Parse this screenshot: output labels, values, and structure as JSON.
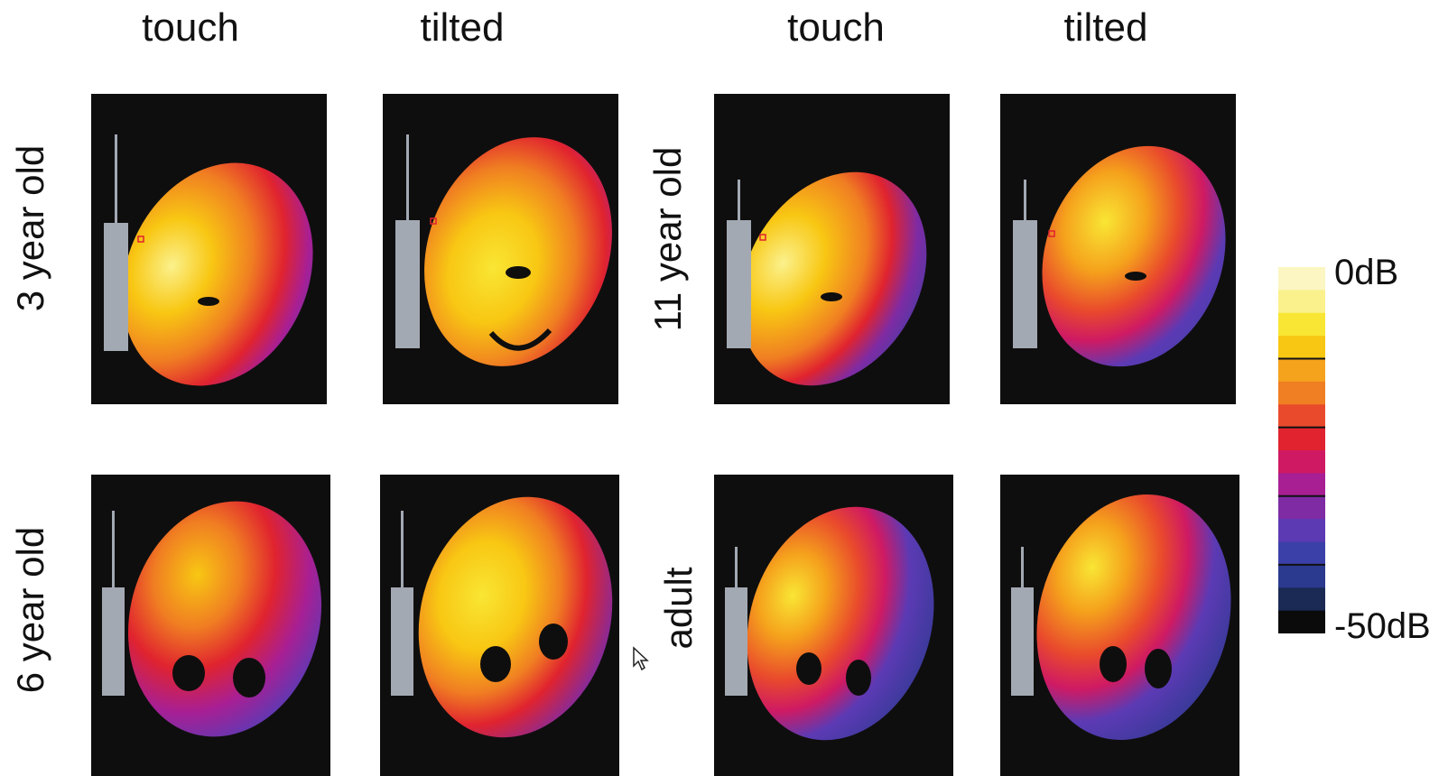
{
  "column_labels": [
    "touch",
    "tilted",
    "touch",
    "tilted"
  ],
  "row_labels": {
    "left_top": "3 year old",
    "left_bottom": "6 year old",
    "right_top": "11 year old",
    "right_bottom": "adult"
  },
  "colorbar": {
    "top_label": "0dB",
    "bottom_label": "-50dB",
    "colors_top_to_bottom": [
      "#fbf6c2",
      "#fbf18c",
      "#f9e634",
      "#f8c713",
      "#f5a21c",
      "#f07e22",
      "#e94a2c",
      "#e0232f",
      "#cf1a63",
      "#a81f94",
      "#7f2ba3",
      "#5c3ab4",
      "#3b40a8",
      "#2b3a8e",
      "#1b2a55",
      "#0b0b0b"
    ],
    "tick_after_index": [
      3,
      6,
      9,
      12
    ]
  },
  "panels": [
    {
      "id": "p3-touch",
      "orientation": "touch",
      "age": "3 year old"
    },
    {
      "id": "p3-tilted",
      "orientation": "tilted",
      "age": "3 year old"
    },
    {
      "id": "p11-touch",
      "orientation": "touch",
      "age": "11 year old"
    },
    {
      "id": "p11-tilted",
      "orientation": "tilted",
      "age": "11 year old"
    },
    {
      "id": "p6-touch",
      "orientation": "touch",
      "age": "6 year old"
    },
    {
      "id": "p6-tilted",
      "orientation": "tilted",
      "age": "6 year old"
    },
    {
      "id": "padult-touch",
      "orientation": "touch",
      "age": "adult"
    },
    {
      "id": "padult-tilted",
      "orientation": "tilted",
      "age": "adult"
    }
  ]
}
